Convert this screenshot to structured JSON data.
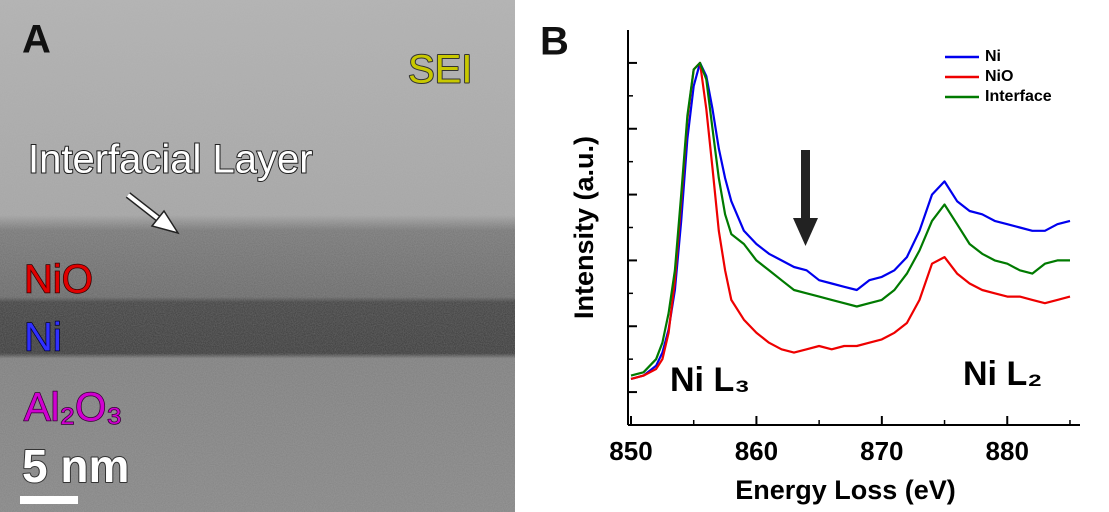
{
  "panel_a": {
    "label": "A",
    "sei": "SEI",
    "interfacial": "Interfacial Layer",
    "nio": "NiO",
    "ni": "Ni",
    "al2o3": "Al₂O₃",
    "scale": "5 nm"
  },
  "chart_data": {
    "type": "line",
    "panel_label": "B",
    "x_label": "Energy Loss (eV)",
    "y_label": "Intensity (a.u.)",
    "annotations": [
      "Ni L₃",
      "Ni L₂"
    ],
    "x": [
      850,
      851,
      852,
      852.5,
      853,
      853.5,
      854,
      854.5,
      855,
      855.5,
      856,
      856.5,
      857,
      857.5,
      858,
      859,
      860,
      861,
      862,
      863,
      864,
      865,
      866,
      867,
      868,
      869,
      870,
      871,
      872,
      873,
      874,
      875,
      876,
      877,
      878,
      879,
      880,
      881,
      882,
      883,
      884,
      885
    ],
    "series": [
      {
        "name": "Ni",
        "color": "#0000ee",
        "values": [
          0.04,
          0.05,
          0.08,
          0.12,
          0.19,
          0.31,
          0.52,
          0.77,
          0.93,
          1.0,
          0.96,
          0.86,
          0.74,
          0.65,
          0.58,
          0.49,
          0.45,
          0.42,
          0.4,
          0.38,
          0.37,
          0.34,
          0.33,
          0.32,
          0.31,
          0.34,
          0.35,
          0.37,
          0.41,
          0.49,
          0.6,
          0.64,
          0.58,
          0.55,
          0.54,
          0.52,
          0.51,
          0.5,
          0.49,
          0.49,
          0.51,
          0.52
        ]
      },
      {
        "name": "NiO",
        "color": "#ee0000",
        "values": [
          0.04,
          0.05,
          0.07,
          0.1,
          0.18,
          0.34,
          0.58,
          0.83,
          0.98,
          1.0,
          0.86,
          0.68,
          0.49,
          0.37,
          0.28,
          0.22,
          0.18,
          0.15,
          0.13,
          0.12,
          0.13,
          0.14,
          0.13,
          0.14,
          0.14,
          0.15,
          0.16,
          0.18,
          0.21,
          0.28,
          0.39,
          0.41,
          0.36,
          0.33,
          0.31,
          0.3,
          0.29,
          0.29,
          0.28,
          0.27,
          0.28,
          0.29
        ]
      },
      {
        "name": "Interface",
        "color": "#007a00",
        "values": [
          0.05,
          0.06,
          0.1,
          0.15,
          0.24,
          0.37,
          0.6,
          0.84,
          0.98,
          1.0,
          0.95,
          0.8,
          0.65,
          0.54,
          0.48,
          0.45,
          0.4,
          0.37,
          0.34,
          0.31,
          0.3,
          0.29,
          0.28,
          0.27,
          0.26,
          0.27,
          0.28,
          0.31,
          0.36,
          0.43,
          0.52,
          0.57,
          0.51,
          0.45,
          0.42,
          0.4,
          0.39,
          0.37,
          0.36,
          0.39,
          0.4,
          0.4
        ]
      }
    ],
    "xlim": [
      850,
      885.8
    ],
    "xticks": [
      850,
      860,
      870,
      880
    ],
    "xminorticks": [
      855,
      865,
      875,
      885
    ],
    "ylim": [
      -0.1,
      1.1
    ],
    "yticks": [
      0,
      0.2,
      0.4,
      0.6,
      0.8,
      1.0
    ],
    "yminorticks": [
      0.1,
      0.3,
      0.5,
      0.7,
      0.9
    ],
    "legend": "upper right"
  }
}
